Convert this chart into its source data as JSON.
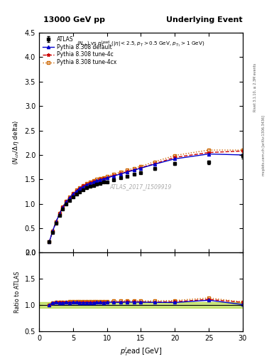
{
  "title_left": "13000 GeV pp",
  "title_right": "Underlying Event",
  "subplot_title": "<N_{ch}> vs p_{T}^{lead} (|\\eta| < 2.5, p_{T} > 0.5 GeV, p_{T_1} > 1 GeV)",
  "xlabel": "p$_{T}^{l}$ead [GeV]",
  "ylabel_main": "<N_{ch} / #Delta#eta delta>",
  "ylabel_ratio": "Ratio to ATLAS",
  "right_label_top": "Rivet 3.1.10, ≥ 2.3M events",
  "right_label_bottom": "mcplots.cern.ch [arXiv:1306.3436]",
  "watermark": "ATLAS_2017_I1509919",
  "xlim": [
    0,
    30
  ],
  "ylim_main": [
    0,
    4.5
  ],
  "ylim_ratio": [
    0.5,
    2.0
  ],
  "atlas_x": [
    1.5,
    2.0,
    2.5,
    3.0,
    3.5,
    4.0,
    4.5,
    5.0,
    5.5,
    6.0,
    6.5,
    7.0,
    7.5,
    8.0,
    8.5,
    9.0,
    9.5,
    10.0,
    11.0,
    12.0,
    13.0,
    14.0,
    15.0,
    17.0,
    20.0,
    25.0,
    30.0
  ],
  "atlas_y": [
    0.22,
    0.42,
    0.6,
    0.76,
    0.89,
    0.99,
    1.07,
    1.14,
    1.2,
    1.25,
    1.29,
    1.33,
    1.36,
    1.38,
    1.4,
    1.42,
    1.44,
    1.45,
    1.49,
    1.53,
    1.56,
    1.6,
    1.64,
    1.72,
    1.83,
    1.85,
    1.98
  ],
  "atlas_yerr": [
    0.01,
    0.01,
    0.01,
    0.01,
    0.01,
    0.01,
    0.01,
    0.01,
    0.01,
    0.01,
    0.01,
    0.01,
    0.01,
    0.01,
    0.01,
    0.01,
    0.01,
    0.01,
    0.01,
    0.01,
    0.01,
    0.01,
    0.02,
    0.02,
    0.03,
    0.04,
    0.05
  ],
  "py_default_x": [
    1.5,
    2.0,
    2.5,
    3.0,
    3.5,
    4.0,
    4.5,
    5.0,
    5.5,
    6.0,
    6.5,
    7.0,
    7.5,
    8.0,
    8.5,
    9.0,
    9.5,
    10.0,
    11.0,
    12.0,
    13.0,
    14.0,
    15.0,
    17.0,
    20.0,
    25.0,
    30.0
  ],
  "py_default_y": [
    0.22,
    0.44,
    0.63,
    0.79,
    0.93,
    1.04,
    1.12,
    1.2,
    1.26,
    1.31,
    1.35,
    1.39,
    1.42,
    1.44,
    1.47,
    1.49,
    1.51,
    1.53,
    1.57,
    1.61,
    1.65,
    1.69,
    1.73,
    1.81,
    1.92,
    2.02,
    2.0
  ],
  "py_4c_x": [
    1.5,
    2.0,
    2.5,
    3.0,
    3.5,
    4.0,
    4.5,
    5.0,
    5.5,
    6.0,
    6.5,
    7.0,
    7.5,
    8.0,
    8.5,
    9.0,
    9.5,
    10.0,
    11.0,
    12.0,
    13.0,
    14.0,
    15.0,
    17.0,
    20.0,
    25.0,
    30.0
  ],
  "py_4c_y": [
    0.22,
    0.44,
    0.63,
    0.8,
    0.94,
    1.05,
    1.13,
    1.21,
    1.27,
    1.32,
    1.37,
    1.4,
    1.43,
    1.46,
    1.48,
    1.5,
    1.52,
    1.54,
    1.58,
    1.62,
    1.66,
    1.7,
    1.74,
    1.82,
    1.95,
    2.05,
    2.08
  ],
  "py_4cx_x": [
    1.5,
    2.0,
    2.5,
    3.0,
    3.5,
    4.0,
    4.5,
    5.0,
    5.5,
    6.0,
    6.5,
    7.0,
    7.5,
    8.0,
    8.5,
    9.0,
    9.5,
    10.0,
    11.0,
    12.0,
    13.0,
    14.0,
    15.0,
    17.0,
    20.0,
    25.0,
    30.0
  ],
  "py_4cx_y": [
    0.22,
    0.44,
    0.63,
    0.8,
    0.94,
    1.05,
    1.14,
    1.22,
    1.28,
    1.33,
    1.38,
    1.42,
    1.45,
    1.47,
    1.5,
    1.52,
    1.54,
    1.56,
    1.61,
    1.65,
    1.69,
    1.73,
    1.77,
    1.86,
    1.99,
    2.1,
    2.1
  ],
  "color_default": "#0000cc",
  "color_4c": "#cc0000",
  "color_4cx": "#cc6600",
  "color_atlas": "#000000",
  "ratio_band_color": "#99cc00",
  "ratio_band_alpha": 0.5
}
